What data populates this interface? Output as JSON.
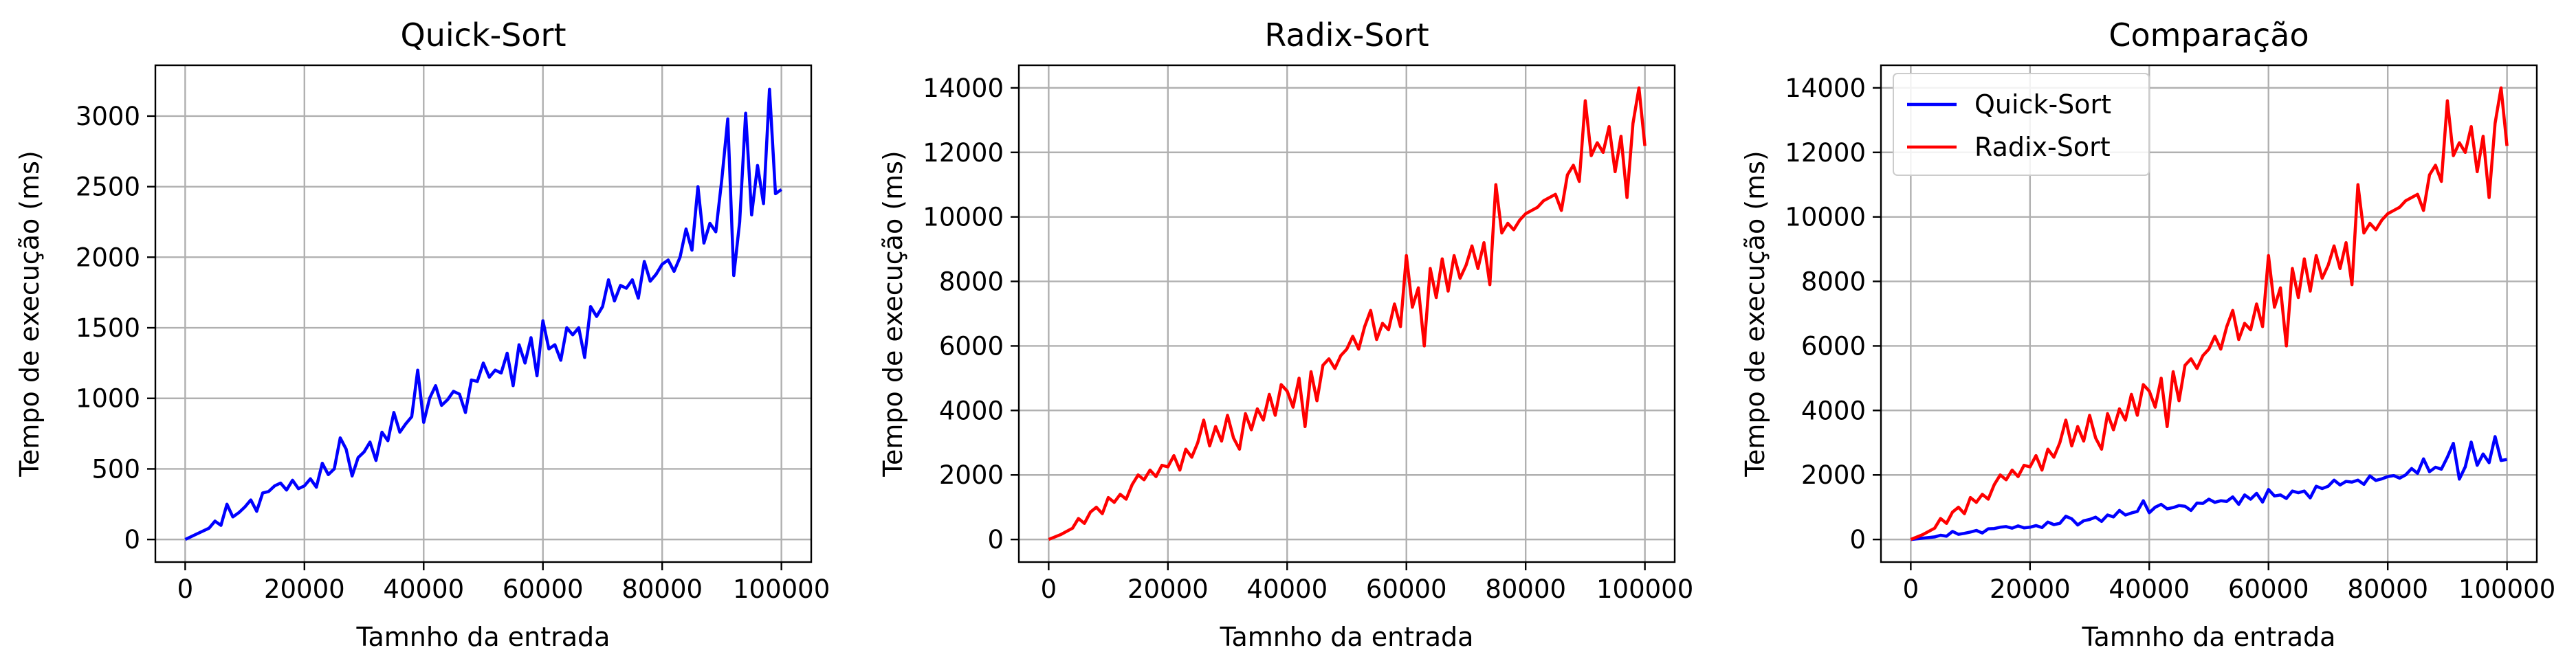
{
  "chart_data": [
    {
      "type": "line",
      "title": "Quick-Sort",
      "xlabel": "Tamnho da entrada",
      "ylabel": "Tempo de execução (ms)",
      "xlim": [
        -5000,
        105000
      ],
      "ylim": [
        -160,
        3360
      ],
      "xticks": [
        0,
        20000,
        40000,
        60000,
        80000,
        100000
      ],
      "yticks": [
        0,
        500,
        1000,
        1500,
        2000,
        2500,
        3000
      ],
      "grid": true,
      "series": [
        {
          "color": "#0000ff",
          "x": [
            0,
            2000,
            4000,
            5000,
            6000,
            7000,
            8000,
            9000,
            10000,
            11000,
            12000,
            13000,
            14000,
            15000,
            16000,
            17000,
            18000,
            19000,
            20000,
            21000,
            22000,
            23000,
            24000,
            25000,
            26000,
            27000,
            28000,
            29000,
            30000,
            31000,
            32000,
            33000,
            34000,
            35000,
            36000,
            37000,
            38000,
            39000,
            40000,
            41000,
            42000,
            43000,
            44000,
            45000,
            46000,
            47000,
            48000,
            49000,
            50000,
            51000,
            52000,
            53000,
            54000,
            55000,
            56000,
            57000,
            58000,
            59000,
            60000,
            61000,
            62000,
            63000,
            64000,
            65000,
            66000,
            67000,
            68000,
            69000,
            70000,
            71000,
            72000,
            73000,
            74000,
            75000,
            76000,
            77000,
            78000,
            79000,
            80000,
            81000,
            82000,
            83000,
            84000,
            85000,
            86000,
            87000,
            88000,
            89000,
            90000,
            91000,
            92000,
            93000,
            94000,
            95000,
            96000,
            97000,
            98000,
            99000,
            100000
          ],
          "values": [
            0,
            40,
            80,
            130,
            100,
            250,
            160,
            190,
            230,
            280,
            200,
            330,
            340,
            380,
            400,
            350,
            420,
            360,
            380,
            430,
            370,
            540,
            460,
            500,
            720,
            640,
            450,
            580,
            620,
            690,
            560,
            760,
            700,
            900,
            760,
            820,
            870,
            1200,
            830,
            1000,
            1090,
            950,
            990,
            1050,
            1030,
            900,
            1130,
            1120,
            1250,
            1150,
            1200,
            1180,
            1320,
            1090,
            1380,
            1250,
            1430,
            1160,
            1550,
            1350,
            1380,
            1270,
            1500,
            1450,
            1500,
            1290,
            1650,
            1580,
            1650,
            1840,
            1690,
            1800,
            1780,
            1840,
            1710,
            1970,
            1830,
            1880,
            1950,
            1980,
            1900,
            2000,
            2200,
            2050,
            2500,
            2100,
            2240,
            2180,
            2550,
            2980,
            1870,
            2250,
            3020,
            2300,
            2650,
            2380,
            3190,
            2450,
            2480
          ]
        }
      ]
    },
    {
      "type": "line",
      "title": "Radix-Sort",
      "xlabel": "Tamnho da entrada",
      "ylabel": "Tempo de execução (ms)",
      "xlim": [
        -5000,
        105000
      ],
      "ylim": [
        -700,
        14700
      ],
      "xticks": [
        0,
        20000,
        40000,
        60000,
        80000,
        100000
      ],
      "yticks": [
        0,
        2000,
        4000,
        6000,
        8000,
        10000,
        12000,
        14000
      ],
      "grid": true,
      "series": [
        {
          "color": "#ff0000",
          "x": [
            0,
            2000,
            4000,
            5000,
            6000,
            7000,
            8000,
            9000,
            10000,
            11000,
            12000,
            13000,
            14000,
            15000,
            16000,
            17000,
            18000,
            19000,
            20000,
            21000,
            22000,
            23000,
            24000,
            25000,
            26000,
            27000,
            28000,
            29000,
            30000,
            31000,
            32000,
            33000,
            34000,
            35000,
            36000,
            37000,
            38000,
            39000,
            40000,
            41000,
            42000,
            43000,
            44000,
            45000,
            46000,
            47000,
            48000,
            49000,
            50000,
            51000,
            52000,
            53000,
            54000,
            55000,
            56000,
            57000,
            58000,
            59000,
            60000,
            61000,
            62000,
            63000,
            64000,
            65000,
            66000,
            67000,
            68000,
            69000,
            70000,
            71000,
            72000,
            73000,
            74000,
            75000,
            76000,
            77000,
            78000,
            79000,
            80000,
            81000,
            82000,
            83000,
            84000,
            85000,
            86000,
            87000,
            88000,
            89000,
            90000,
            91000,
            92000,
            93000,
            94000,
            95000,
            96000,
            97000,
            98000,
            99000,
            100000
          ],
          "values": [
            0,
            150,
            350,
            650,
            500,
            850,
            1000,
            800,
            1300,
            1150,
            1400,
            1250,
            1700,
            2000,
            1850,
            2150,
            1950,
            2300,
            2250,
            2600,
            2150,
            2800,
            2550,
            3000,
            3700,
            2900,
            3500,
            3050,
            3850,
            3150,
            2800,
            3900,
            3400,
            4050,
            3700,
            4500,
            3850,
            4800,
            4600,
            4100,
            5000,
            3500,
            5200,
            4300,
            5400,
            5600,
            5300,
            5700,
            5900,
            6300,
            5900,
            6600,
            7100,
            6200,
            6700,
            6500,
            7300,
            6600,
            8800,
            7200,
            7800,
            6000,
            8400,
            7500,
            8700,
            7700,
            8800,
            8100,
            8500,
            9100,
            8400,
            9200,
            7900,
            11000,
            9500,
            9800,
            9600,
            9900,
            10100,
            10200,
            10300,
            10500,
            10600,
            10700,
            10200,
            11300,
            11600,
            11100,
            13600,
            11900,
            12300,
            12000,
            12800,
            11400,
            12500,
            10600,
            12900,
            14000,
            12200
          ]
        }
      ]
    },
    {
      "type": "line",
      "title": "Comparação",
      "xlabel": "Tamnho da entrada",
      "ylabel": "Tempo de execução (ms)",
      "xlim": [
        -5000,
        105000
      ],
      "ylim": [
        -700,
        14700
      ],
      "xticks": [
        0,
        20000,
        40000,
        60000,
        80000,
        100000
      ],
      "yticks": [
        0,
        2000,
        4000,
        6000,
        8000,
        10000,
        12000,
        14000
      ],
      "grid": true,
      "legend": "top-left",
      "series": [
        {
          "name": "Quick-Sort",
          "color": "#0000ff",
          "x": [
            0,
            2000,
            4000,
            5000,
            6000,
            7000,
            8000,
            9000,
            10000,
            11000,
            12000,
            13000,
            14000,
            15000,
            16000,
            17000,
            18000,
            19000,
            20000,
            21000,
            22000,
            23000,
            24000,
            25000,
            26000,
            27000,
            28000,
            29000,
            30000,
            31000,
            32000,
            33000,
            34000,
            35000,
            36000,
            37000,
            38000,
            39000,
            40000,
            41000,
            42000,
            43000,
            44000,
            45000,
            46000,
            47000,
            48000,
            49000,
            50000,
            51000,
            52000,
            53000,
            54000,
            55000,
            56000,
            57000,
            58000,
            59000,
            60000,
            61000,
            62000,
            63000,
            64000,
            65000,
            66000,
            67000,
            68000,
            69000,
            70000,
            71000,
            72000,
            73000,
            74000,
            75000,
            76000,
            77000,
            78000,
            79000,
            80000,
            81000,
            82000,
            83000,
            84000,
            85000,
            86000,
            87000,
            88000,
            89000,
            90000,
            91000,
            92000,
            93000,
            94000,
            95000,
            96000,
            97000,
            98000,
            99000,
            100000
          ],
          "values": [
            0,
            40,
            80,
            130,
            100,
            250,
            160,
            190,
            230,
            280,
            200,
            330,
            340,
            380,
            400,
            350,
            420,
            360,
            380,
            430,
            370,
            540,
            460,
            500,
            720,
            640,
            450,
            580,
            620,
            690,
            560,
            760,
            700,
            900,
            760,
            820,
            870,
            1200,
            830,
            1000,
            1090,
            950,
            990,
            1050,
            1030,
            900,
            1130,
            1120,
            1250,
            1150,
            1200,
            1180,
            1320,
            1090,
            1380,
            1250,
            1430,
            1160,
            1550,
            1350,
            1380,
            1270,
            1500,
            1450,
            1500,
            1290,
            1650,
            1580,
            1650,
            1840,
            1690,
            1800,
            1780,
            1840,
            1710,
            1970,
            1830,
            1880,
            1950,
            1980,
            1900,
            2000,
            2200,
            2050,
            2500,
            2100,
            2240,
            2180,
            2550,
            2980,
            1870,
            2250,
            3020,
            2300,
            2650,
            2380,
            3190,
            2450,
            2480
          ]
        },
        {
          "name": "Radix-Sort",
          "color": "#ff0000",
          "x": [
            0,
            2000,
            4000,
            5000,
            6000,
            7000,
            8000,
            9000,
            10000,
            11000,
            12000,
            13000,
            14000,
            15000,
            16000,
            17000,
            18000,
            19000,
            20000,
            21000,
            22000,
            23000,
            24000,
            25000,
            26000,
            27000,
            28000,
            29000,
            30000,
            31000,
            32000,
            33000,
            34000,
            35000,
            36000,
            37000,
            38000,
            39000,
            40000,
            41000,
            42000,
            43000,
            44000,
            45000,
            46000,
            47000,
            48000,
            49000,
            50000,
            51000,
            52000,
            53000,
            54000,
            55000,
            56000,
            57000,
            58000,
            59000,
            60000,
            61000,
            62000,
            63000,
            64000,
            65000,
            66000,
            67000,
            68000,
            69000,
            70000,
            71000,
            72000,
            73000,
            74000,
            75000,
            76000,
            77000,
            78000,
            79000,
            80000,
            81000,
            82000,
            83000,
            84000,
            85000,
            86000,
            87000,
            88000,
            89000,
            90000,
            91000,
            92000,
            93000,
            94000,
            95000,
            96000,
            97000,
            98000,
            99000,
            100000
          ],
          "values": [
            0,
            150,
            350,
            650,
            500,
            850,
            1000,
            800,
            1300,
            1150,
            1400,
            1250,
            1700,
            2000,
            1850,
            2150,
            1950,
            2300,
            2250,
            2600,
            2150,
            2800,
            2550,
            3000,
            3700,
            2900,
            3500,
            3050,
            3850,
            3150,
            2800,
            3900,
            3400,
            4050,
            3700,
            4500,
            3850,
            4800,
            4600,
            4100,
            5000,
            3500,
            5200,
            4300,
            5400,
            5600,
            5300,
            5700,
            5900,
            6300,
            5900,
            6600,
            7100,
            6200,
            6700,
            6500,
            7300,
            6600,
            8800,
            7200,
            7800,
            6000,
            8400,
            7500,
            8700,
            7700,
            8800,
            8100,
            8500,
            9100,
            8400,
            9200,
            7900,
            11000,
            9500,
            9800,
            9600,
            9900,
            10100,
            10200,
            10300,
            10500,
            10600,
            10700,
            10200,
            11300,
            11600,
            11100,
            13600,
            11900,
            12300,
            12000,
            12800,
            11400,
            12500,
            10600,
            12900,
            14000,
            12200
          ]
        }
      ]
    }
  ]
}
